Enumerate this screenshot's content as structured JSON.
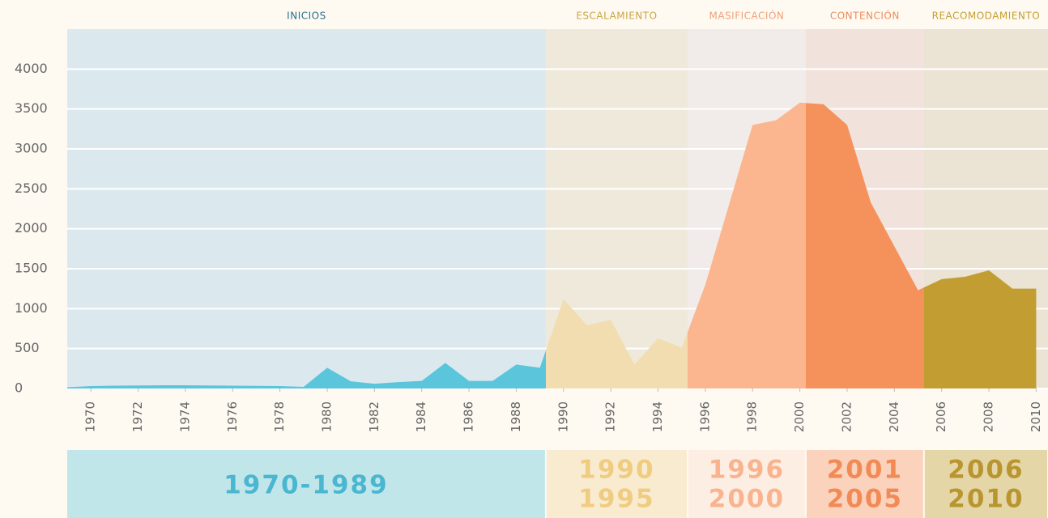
{
  "chart_data": {
    "type": "area",
    "x": [
      1969,
      1970,
      1971,
      1972,
      1973,
      1974,
      1975,
      1976,
      1977,
      1978,
      1979,
      1980,
      1981,
      1982,
      1983,
      1984,
      1985,
      1986,
      1987,
      1988,
      1989,
      1990,
      1991,
      1992,
      1993,
      1994,
      1995,
      1996,
      1997,
      1998,
      1999,
      2000,
      2001,
      2002,
      2003,
      2004,
      2005,
      2006,
      2007,
      2008,
      2009,
      2010
    ],
    "values": [
      15,
      30,
      35,
      38,
      40,
      40,
      38,
      35,
      33,
      30,
      20,
      260,
      90,
      60,
      80,
      95,
      320,
      95,
      95,
      300,
      260,
      1120,
      790,
      860,
      300,
      630,
      510,
      1300,
      2300,
      3300,
      3360,
      3580,
      3560,
      3300,
      2330,
      1780,
      1230,
      1370,
      1400,
      1480,
      1250,
      1250
    ],
    "xlim": [
      1969,
      2010.5
    ],
    "xticks": [
      1970,
      1972,
      1974,
      1976,
      1978,
      1980,
      1982,
      1984,
      1986,
      1988,
      1990,
      1992,
      1994,
      1996,
      1998,
      2000,
      2002,
      2004,
      2006,
      2008,
      2010
    ],
    "ylim": [
      0,
      4500
    ],
    "yticks": [
      0,
      500,
      1000,
      1500,
      2000,
      2500,
      3000,
      3500,
      4000
    ],
    "grid": true,
    "phases": [
      {
        "name": "INICIOS",
        "period": [
          "1970-1989"
        ],
        "color": "#5bc5dc",
        "label_color": "#2a6e8e",
        "background": "#dbe9ef",
        "box_color": "#c1e6ea",
        "period_color": "#4ab6cf"
      },
      {
        "name": "ESCALAMIENTO",
        "period": [
          "1990",
          "1995"
        ],
        "color": "#f2ddb0",
        "label_color": "#c9a544",
        "background": "#efe9dc",
        "box_color": "#f8ebcf",
        "period_color": "#f0cc80"
      },
      {
        "name": "MASIFICACIÓN",
        "period": [
          "1996",
          "2000"
        ],
        "color": "#fbb68f",
        "label_color": "#f0a07a",
        "background": "#f1ecea",
        "box_color": "#fdeee4",
        "period_color": "#f9b48f"
      },
      {
        "name": "CONTENCIÓN",
        "period": [
          "2001",
          "2005"
        ],
        "color": "#f5925c",
        "label_color": "#ef8a5a",
        "background": "#f2e2dc",
        "box_color": "#fbd2bc",
        "period_color": "#f28a55"
      },
      {
        "name": "REACOMODAMIENTO",
        "period": [
          "2006",
          "2010"
        ],
        "color": "#c29e32",
        "label_color": "#c29e32",
        "background": "#ebe3d3",
        "box_color": "#e5d6a8",
        "period_color": "#b8952f"
      }
    ]
  }
}
